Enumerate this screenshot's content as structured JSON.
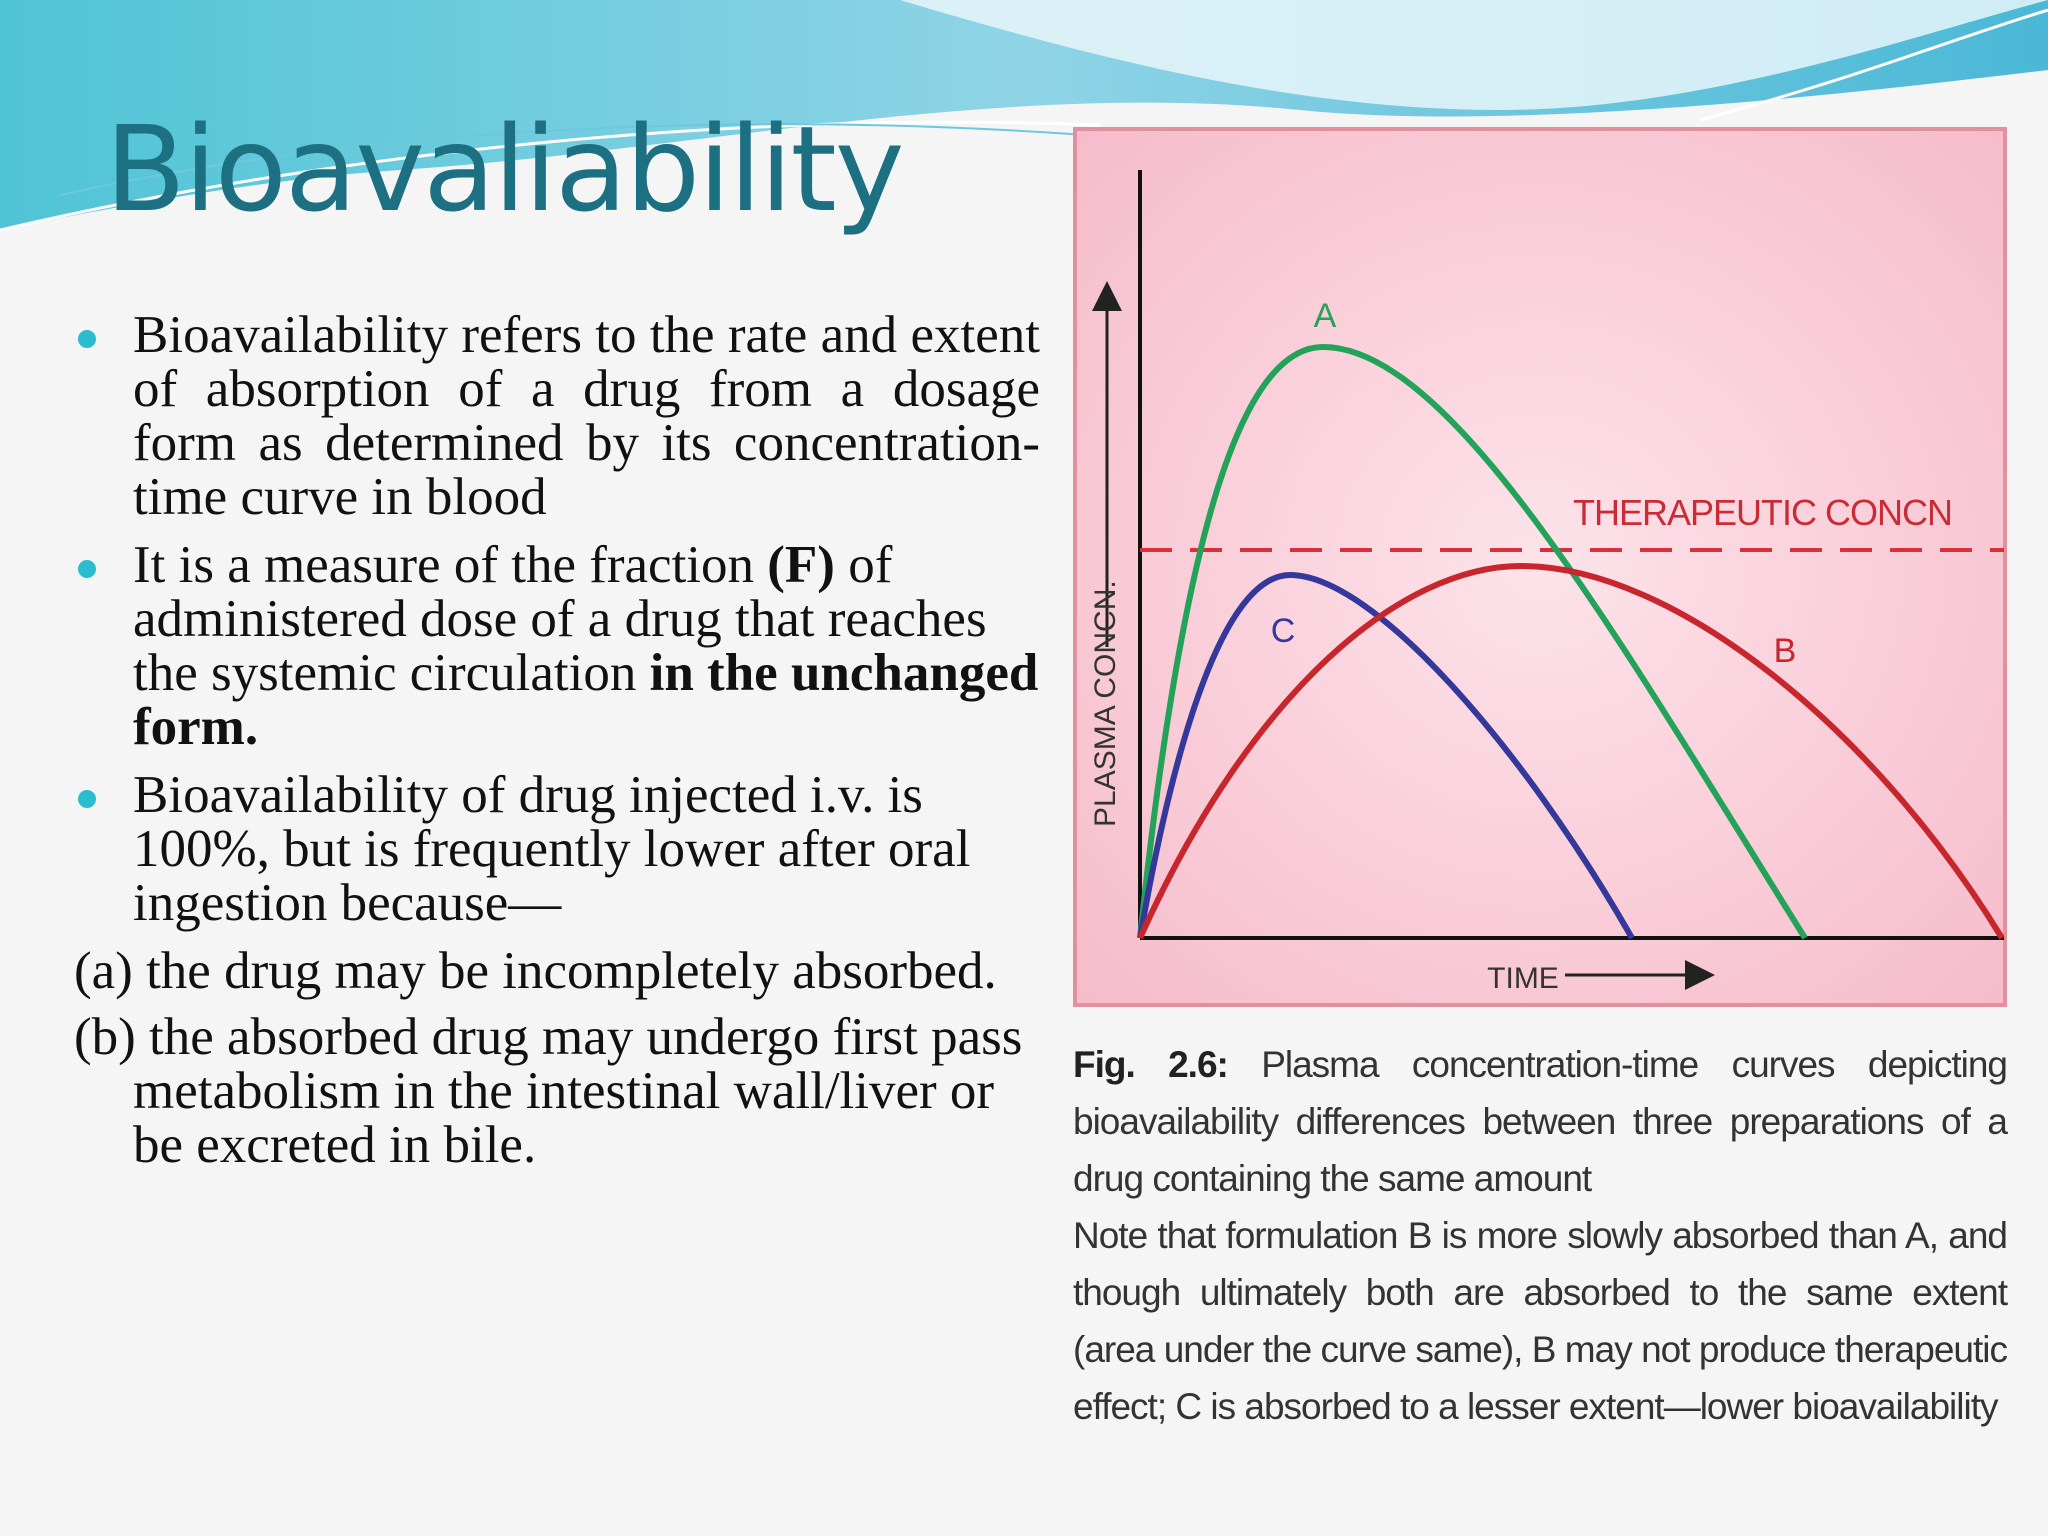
{
  "title": "Bioavaliability",
  "bullets": [
    [
      "Bioavailability refers to the rate and extent of absorption of a drug from a dosage form as determined by its concentration-time curve in blood"
    ],
    [
      "It is a measure of the fraction ",
      "(F)",
      " of administered dose of a drug that reaches the systemic circulation ",
      "in the unchanged form."
    ],
    [
      "Bioavailability of drug injected i.v. is 100%, but is frequently lower after oral ingestion because—"
    ]
  ],
  "sub_items": [
    "(a) the drug may be incompletely absorbed.",
    "(b) the absorbed drug may undergo first pass metabolism in the intestinal wall/liver or be excreted in bile."
  ],
  "figure": {
    "y_axis_label": "PLASMA CONCN.",
    "x_axis_label": "TIME",
    "threshold_label": "THERAPEUTIC CONCN",
    "curve_labels": [
      "A",
      "B",
      "C"
    ],
    "caption_label": "Fig. 2.6:",
    "caption": "Plasma concentration-time curves depicting bioavailability differences between three preparations of a drug containing the same amount",
    "note": "Note that formulation B is more slowly absorbed than A, and though ultimately both are absorbed to the same extent (area under the curve same), B may not produce therapeutic effect; C is absorbed to a lesser extent—lower bioavailability"
  }
}
